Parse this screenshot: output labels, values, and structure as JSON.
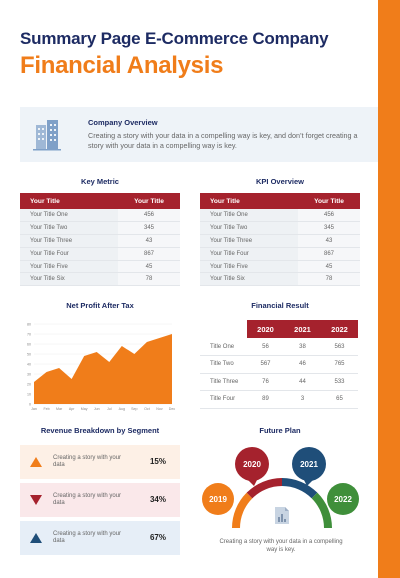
{
  "header": {
    "title": "Summary Page E-Commerce Company",
    "subtitle": "Financial Analysis"
  },
  "overview": {
    "icon": "building-icon",
    "heading": "Company Overview",
    "text": "Creating a story with your data in a compelling way is key, and don’t forget creating a story with your data in a compelling way is key."
  },
  "key_metric": {
    "title": "Key Metric",
    "headers": [
      "Your Title",
      "Your Title"
    ],
    "rows": [
      [
        "Your Title One",
        "456"
      ],
      [
        "Your Title Two",
        "345"
      ],
      [
        "Your Title Three",
        "43"
      ],
      [
        "Your Title Four",
        "867"
      ],
      [
        "Your Title Five",
        "45"
      ],
      [
        "Your Title Six",
        "78"
      ]
    ]
  },
  "kpi_overview": {
    "title": "KPI Overview",
    "headers": [
      "Your Title",
      "Your Title"
    ],
    "rows": [
      [
        "Your Title One",
        "456"
      ],
      [
        "Your Title Two",
        "345"
      ],
      [
        "Your Title Three",
        "43"
      ],
      [
        "Your Title Four",
        "867"
      ],
      [
        "Your Title Five",
        "45"
      ],
      [
        "Your Title Six",
        "78"
      ]
    ]
  },
  "profit_chart": {
    "title": "Net Profit After Tax",
    "chart_data": {
      "type": "area",
      "categories": [
        "Jan",
        "Feb",
        "Mar",
        "Apr",
        "May",
        "Jun",
        "Jul",
        "Aug",
        "Sep",
        "Oct",
        "Nov",
        "Dec"
      ],
      "values": [
        22,
        32,
        36,
        25,
        48,
        52,
        42,
        58,
        50,
        62,
        66,
        70
      ],
      "ylim": [
        0,
        80
      ],
      "yticks": [
        0,
        10,
        20,
        30,
        40,
        50,
        60,
        70,
        80
      ],
      "color": "#f07d1a"
    }
  },
  "financial_result": {
    "title": "Financial Result",
    "years": [
      "2020",
      "2021",
      "2022"
    ],
    "rows": [
      {
        "label": "Title One",
        "values": [
          "56",
          "38",
          "563"
        ]
      },
      {
        "label": "Title Two",
        "values": [
          "567",
          "46",
          "765"
        ]
      },
      {
        "label": "Title Three",
        "values": [
          "76",
          "44",
          "533"
        ]
      },
      {
        "label": "Title Four",
        "values": [
          "89",
          "3",
          "65"
        ]
      }
    ]
  },
  "revenue": {
    "title": "Revenue Breakdown by Segment",
    "rows": [
      {
        "text": "Creating a story with your data",
        "pct": "15%",
        "icon": "triangle-up-icon",
        "color": "#f07d1a",
        "bg": "#fdf0e6"
      },
      {
        "text": "Creating a story with your data",
        "pct": "34%",
        "icon": "triangle-down-icon",
        "color": "#a5222d",
        "bg": "#fae8ea"
      },
      {
        "text": "Creating a story with your data",
        "pct": "67%",
        "icon": "triangle-up-icon",
        "color": "#1f4e79",
        "bg": "#e6eef7"
      }
    ]
  },
  "future_plan": {
    "title": "Future Plan",
    "years": [
      {
        "label": "2019",
        "color": "#f07d1a"
      },
      {
        "label": "2020",
        "color": "#a5222d"
      },
      {
        "label": "2021",
        "color": "#1f4e79"
      },
      {
        "label": "2022",
        "color": "#3f8f3a"
      }
    ],
    "center_icon": "document-chart-icon",
    "text": "Creating a story with your data in a compelling way is key."
  }
}
